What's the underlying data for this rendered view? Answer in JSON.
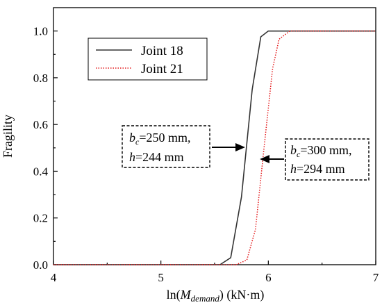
{
  "chart_data": {
    "type": "line",
    "xlabel": {
      "prefix": "ln(",
      "var": "M",
      "sub": "demand",
      "suffix": ") (kN·m)"
    },
    "ylabel": "Fragility",
    "xlim": [
      4,
      7
    ],
    "ylim": [
      0,
      1.1
    ],
    "x_ticks": [
      4,
      5,
      6,
      7
    ],
    "x_tick_labels": [
      "4",
      "5",
      "6",
      "7"
    ],
    "y_ticks": [
      0,
      0.2,
      0.4,
      0.6,
      0.8,
      1.0
    ],
    "y_tick_labels": [
      "0.0",
      "0.2",
      "0.4",
      "0.6",
      "0.8",
      "1.0"
    ],
    "grid": false,
    "legend_position": "top-left",
    "series": [
      {
        "name": "Joint 18",
        "color": "#333333",
        "style": "solid",
        "x": [
          4.0,
          5.55,
          5.65,
          5.75,
          5.85,
          5.93,
          6.0,
          6.1,
          7.0
        ],
        "y": [
          0,
          0,
          0.03,
          0.29,
          0.75,
          0.975,
          1.0,
          1.0,
          1.0
        ]
      },
      {
        "name": "Joint 21",
        "color": "#e41a1c",
        "style": "dotted",
        "x": [
          4.0,
          5.7,
          5.8,
          5.88,
          5.96,
          6.04,
          6.1,
          6.2,
          7.0
        ],
        "y": [
          0,
          0,
          0.02,
          0.15,
          0.5,
          0.84,
          0.965,
          1.0,
          1.0
        ]
      }
    ],
    "annotations": [
      {
        "line1_var": "b",
        "line1_sub": "c",
        "line1_rest": "=250 mm,",
        "line2": "h",
        "line2_rest": "=244 mm",
        "target_series": "Joint 18"
      },
      {
        "line1_var": "b",
        "line1_sub": "c",
        "line1_rest": "=300 mm,",
        "line2": "h",
        "line2_rest": "=294 mm",
        "target_series": "Joint 21"
      }
    ]
  }
}
